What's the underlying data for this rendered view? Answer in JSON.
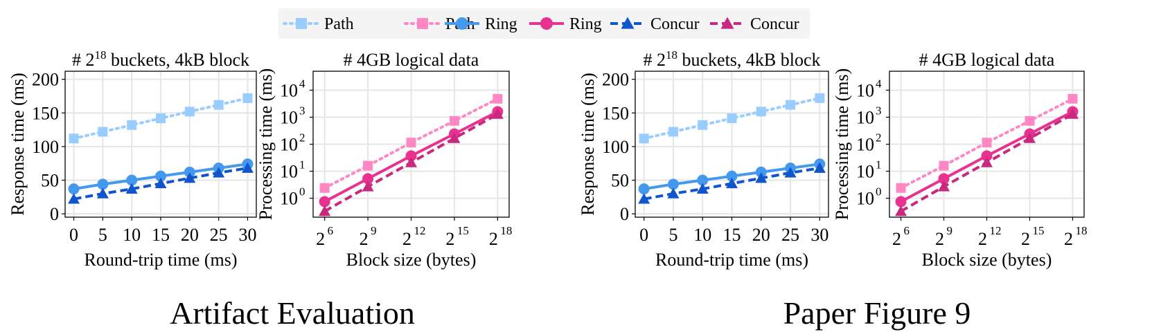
{
  "colors": {
    "path_blue": "#99ccff",
    "path_pink": "#ff88c4",
    "ring_blue": "#4499ee",
    "ring_pink": "#e8328f",
    "concur_blue": "#1155cc",
    "concur_pink": "#c8287e",
    "grid": "#e6e6e6",
    "legend_bg": "#f4f4f4"
  },
  "legend": [
    {
      "label": "Path",
      "color": "#99ccff",
      "style": "dotted",
      "marker": "square"
    },
    {
      "label": "Path",
      "color": "#ff88c4",
      "style": "dotted",
      "marker": "square"
    },
    {
      "label": "Ring",
      "color": "#4499ee",
      "style": "solid",
      "marker": "circle"
    },
    {
      "label": "Ring",
      "color": "#e8328f",
      "style": "solid",
      "marker": "circle"
    },
    {
      "label": "Concur",
      "color": "#1155cc",
      "style": "dashed",
      "marker": "triangle"
    },
    {
      "label": "Concur",
      "color": "#c8287e",
      "style": "dashed",
      "marker": "triangle"
    }
  ],
  "groups": [
    {
      "caption": "Artifact Evaluation"
    },
    {
      "caption": "Paper Figure 9"
    }
  ],
  "chart_data": [
    {
      "type": "line",
      "group": 0,
      "title_pre": "# 2",
      "title_sup": "18",
      "title_post": " buckets, 4kB block",
      "xlabel": "Round-trip time (ms)",
      "ylabel": "Response time (ms)",
      "x": [
        0,
        5,
        10,
        15,
        20,
        25,
        30
      ],
      "xticks": [
        "0",
        "5",
        "10",
        "15",
        "20",
        "25",
        "30"
      ],
      "yticks": [
        0,
        50,
        100,
        150,
        200
      ],
      "xlim": [
        -1.5,
        31.5
      ],
      "ylim": [
        -5,
        212
      ],
      "yscale": "linear",
      "grid": true,
      "series": [
        {
          "name": "Path",
          "color": "#99ccff",
          "style": "dotted",
          "marker": "square",
          "values": [
            112,
            122,
            132,
            142,
            152,
            162,
            172
          ]
        },
        {
          "name": "Ring",
          "color": "#4499ee",
          "style": "solid",
          "marker": "circle",
          "values": [
            37,
            44,
            50,
            56,
            62,
            68,
            74
          ]
        },
        {
          "name": "Concur",
          "color": "#1155cc",
          "style": "dashed",
          "marker": "triangle",
          "values": [
            22,
            30,
            37,
            45,
            53,
            61,
            68
          ]
        }
      ]
    },
    {
      "type": "line",
      "group": 0,
      "title_pre": "# 4GB logical data",
      "title_sup": "",
      "title_post": "",
      "xlabel": "Block size (bytes)",
      "ylabel": "Processing time (ms)",
      "x": [
        6,
        9,
        12,
        15,
        18
      ],
      "xticks": [
        "6",
        "9",
        "12",
        "15",
        "18"
      ],
      "yticks": [
        0,
        1,
        2,
        3,
        4
      ],
      "xlim": [
        5.2,
        18.8
      ],
      "ylim": [
        -0.7,
        4.7
      ],
      "yscale": "log",
      "grid": true,
      "series": [
        {
          "name": "Path",
          "color": "#ff88c4",
          "style": "dotted",
          "marker": "square",
          "values": [
            2.4,
            16,
            115,
            730,
            4800
          ]
        },
        {
          "name": "Ring",
          "color": "#e8328f",
          "style": "solid",
          "marker": "circle",
          "values": [
            0.75,
            5.3,
            37,
            240,
            1600
          ]
        },
        {
          "name": "Concur",
          "color": "#c8287e",
          "style": "dashed",
          "marker": "triangle",
          "values": [
            0.33,
            2.7,
            21,
            165,
            1300
          ]
        }
      ]
    },
    {
      "type": "line",
      "group": 1,
      "title_pre": "# 2",
      "title_sup": "18",
      "title_post": " buckets, 4kB block",
      "xlabel": "Round-trip time (ms)",
      "ylabel": "Response time (ms)",
      "x": [
        0,
        5,
        10,
        15,
        20,
        25,
        30
      ],
      "xticks": [
        "0",
        "5",
        "10",
        "15",
        "20",
        "25",
        "30"
      ],
      "yticks": [
        0,
        50,
        100,
        150,
        200
      ],
      "xlim": [
        -1.5,
        31.5
      ],
      "ylim": [
        -5,
        212
      ],
      "yscale": "linear",
      "grid": true,
      "series": [
        {
          "name": "Path",
          "color": "#99ccff",
          "style": "dotted",
          "marker": "square",
          "values": [
            112,
            122,
            132,
            142,
            152,
            162,
            172
          ]
        },
        {
          "name": "Ring",
          "color": "#4499ee",
          "style": "solid",
          "marker": "circle",
          "values": [
            37,
            44,
            50,
            56,
            62,
            68,
            74
          ]
        },
        {
          "name": "Concur",
          "color": "#1155cc",
          "style": "dashed",
          "marker": "triangle",
          "values": [
            22,
            30,
            37,
            45,
            53,
            61,
            68
          ]
        }
      ]
    },
    {
      "type": "line",
      "group": 1,
      "title_pre": "# 4GB logical data",
      "title_sup": "",
      "title_post": "",
      "xlabel": "Block size (bytes)",
      "ylabel": "Processing time (ms)",
      "x": [
        6,
        9,
        12,
        15,
        18
      ],
      "xticks": [
        "6",
        "9",
        "12",
        "15",
        "18"
      ],
      "yticks": [
        0,
        1,
        2,
        3,
        4
      ],
      "xlim": [
        5.2,
        18.8
      ],
      "ylim": [
        -0.7,
        4.7
      ],
      "yscale": "log",
      "grid": true,
      "series": [
        {
          "name": "Path",
          "color": "#ff88c4",
          "style": "dotted",
          "marker": "square",
          "values": [
            2.4,
            16,
            115,
            730,
            4800
          ]
        },
        {
          "name": "Ring",
          "color": "#e8328f",
          "style": "solid",
          "marker": "circle",
          "values": [
            0.75,
            5.3,
            37,
            240,
            1600
          ]
        },
        {
          "name": "Concur",
          "color": "#c8287e",
          "style": "dashed",
          "marker": "triangle",
          "values": [
            0.33,
            2.7,
            21,
            165,
            1300
          ]
        }
      ]
    }
  ]
}
